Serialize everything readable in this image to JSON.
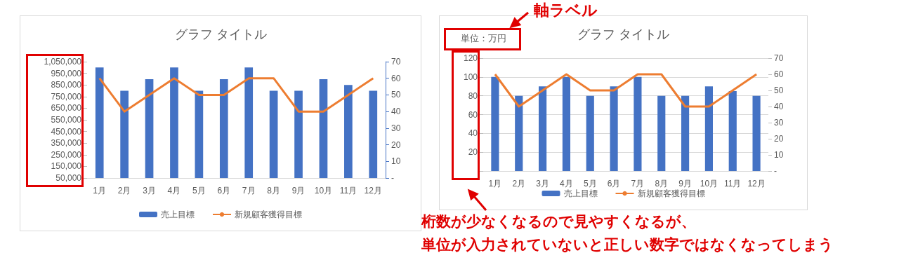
{
  "chart_data": [
    {
      "type": "bar",
      "title": "グラフ タイトル",
      "categories": [
        "1月",
        "2月",
        "3月",
        "4月",
        "5月",
        "6月",
        "7月",
        "8月",
        "9月",
        "10月",
        "11月",
        "12月"
      ],
      "series": [
        {
          "name": "売上目標",
          "color": "#4472c4",
          "values": [
            1000000,
            800000,
            900000,
            1000000,
            800000,
            900000,
            1000000,
            800000,
            800000,
            900000,
            850000,
            800000
          ]
        },
        {
          "name": "新規顧客獲得目標",
          "type": "line",
          "axis": "y2",
          "color": "#ed7d31",
          "values": [
            60,
            40,
            50,
            60,
            50,
            50,
            60,
            60,
            40,
            40,
            50,
            60
          ]
        }
      ],
      "ylim": [
        50000,
        1050000
      ],
      "yticks": [
        {
          "value": 50000,
          "label": "50,000"
        },
        {
          "value": 150000,
          "label": "150,000"
        },
        {
          "value": 250000,
          "label": "250,000"
        },
        {
          "value": 350000,
          "label": "350,000"
        },
        {
          "value": 450000,
          "label": "450,000"
        },
        {
          "value": 550000,
          "label": "550,000"
        },
        {
          "value": 650000,
          "label": "650,000"
        },
        {
          "value": 750000,
          "label": "750,000"
        },
        {
          "value": 850000,
          "label": "850,000"
        },
        {
          "value": 950000,
          "label": "950,000"
        },
        {
          "value": 1050000,
          "label": "1,050,000"
        }
      ],
      "y2lim": [
        0,
        70
      ],
      "y2ticks": [
        {
          "value": 0,
          "label": "-"
        },
        10,
        20,
        30,
        40,
        50,
        60,
        70
      ],
      "grid": false,
      "legend": "bottom",
      "marker": "none"
    },
    {
      "type": "bar",
      "title": "グラフ タイトル",
      "ylabel": "単位：万円",
      "categories": [
        "1月",
        "2月",
        "3月",
        "4月",
        "5月",
        "6月",
        "7月",
        "8月",
        "9月",
        "10月",
        "11月",
        "12月"
      ],
      "series": [
        {
          "name": "売上目標",
          "color": "#4472c4",
          "values": [
            100,
            80,
            90,
            100,
            80,
            90,
            100,
            80,
            80,
            90,
            85,
            80
          ]
        },
        {
          "name": "新規顧客獲得目標",
          "type": "line",
          "axis": "y2",
          "color": "#ed7d31",
          "values": [
            60,
            40,
            50,
            60,
            50,
            50,
            60,
            60,
            40,
            40,
            50,
            60
          ]
        }
      ],
      "ylim": [
        0,
        120
      ],
      "yticks": [
        {
          "value": 0,
          "label": null
        },
        20,
        40,
        60,
        80,
        100,
        120
      ],
      "y2lim": [
        0,
        70
      ],
      "y2ticks": [
        {
          "value": 0,
          "label": "-"
        },
        10,
        20,
        30,
        40,
        50,
        60,
        70
      ],
      "grid": "y",
      "legend": "bottom",
      "marker": "none",
      "annotations": [
        "軸ラベル",
        "桁数が少なくなるので見やすくなるが、",
        "単位が入力されていないと正しい数字ではなくなってしまう"
      ]
    }
  ]
}
